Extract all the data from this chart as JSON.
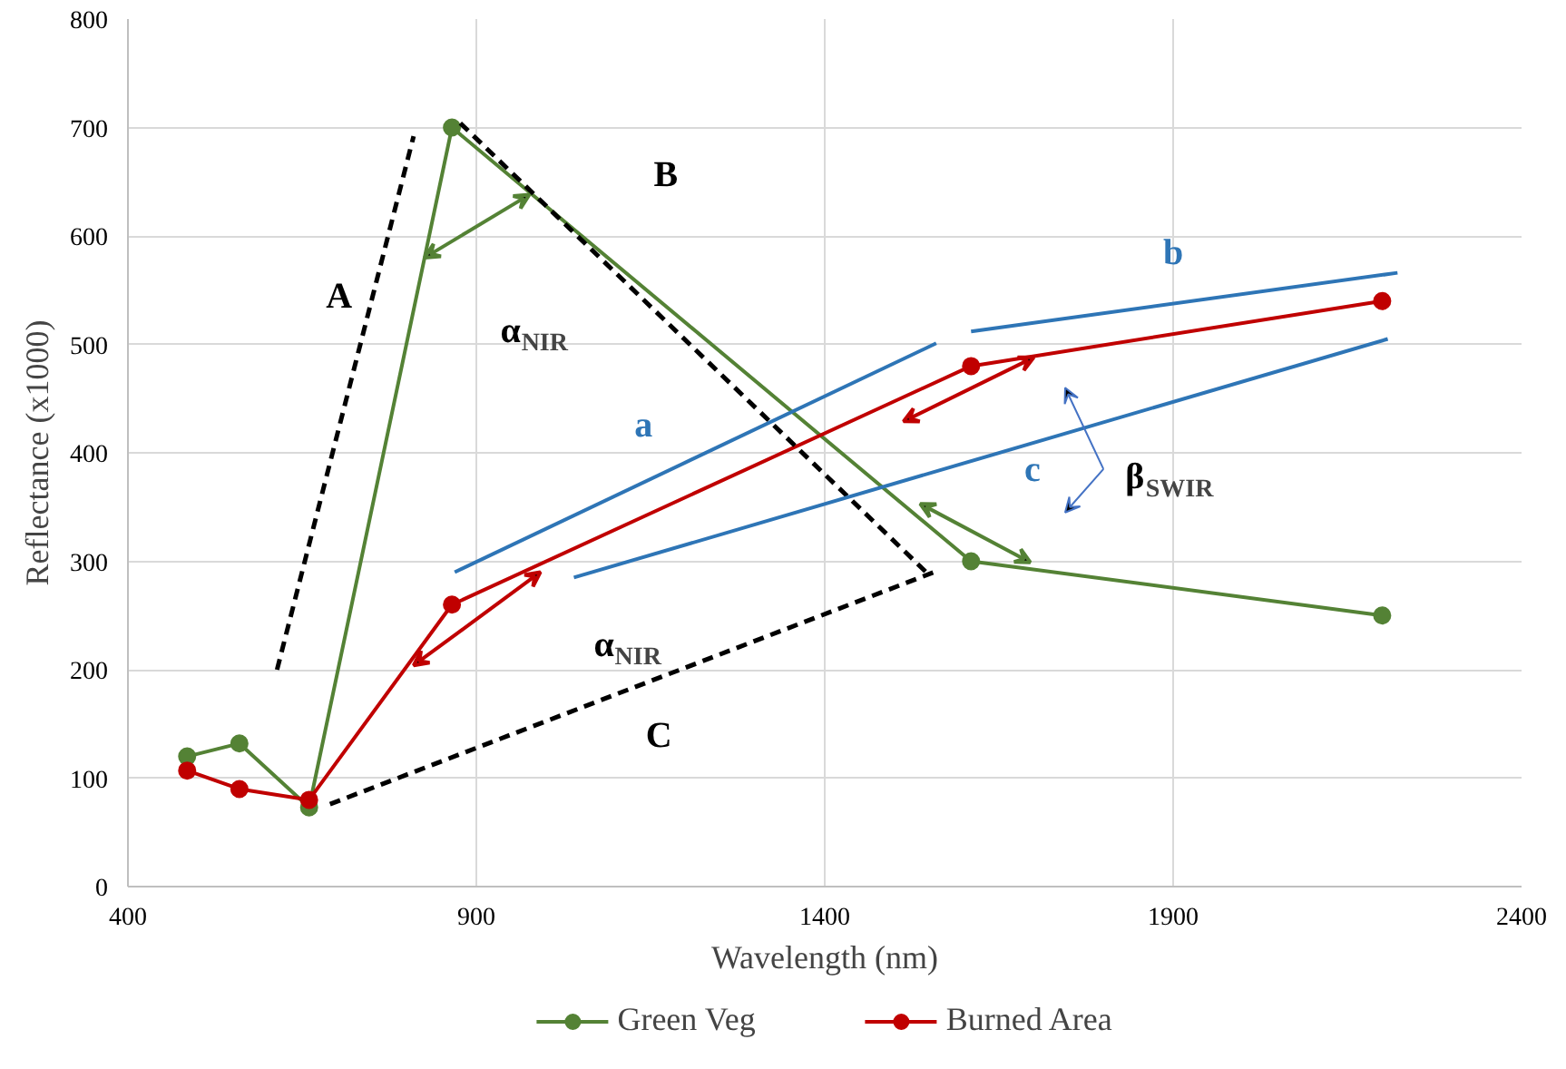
{
  "chart_data": {
    "type": "line",
    "xlabel": "Wavelength (nm)",
    "ylabel": "Reflectance (x1000)",
    "x": [
      485,
      560,
      660,
      865,
      1610,
      2200
    ],
    "xlim": [
      400,
      2400
    ],
    "xticks": [
      400,
      900,
      1400,
      1900,
      2400
    ],
    "ylim": [
      0,
      800
    ],
    "yticks": [
      0,
      100,
      200,
      300,
      400,
      500,
      600,
      700,
      800
    ],
    "grid": true,
    "legend": "bottom",
    "marker": "circle",
    "line_style": "solid",
    "series": [
      {
        "name": "Green Veg",
        "color": "#548235",
        "values": [
          120,
          132,
          73,
          700,
          300,
          250
        ]
      },
      {
        "name": "Burned Area",
        "color": "#c00000",
        "values": [
          107,
          90,
          80,
          260,
          480,
          540
        ]
      },
      {
        "type": "line",
        "x": [
          614,
          810
        ],
        "values": [
          200,
          692
        ],
        "color": "#000000",
        "line_style": "dashed",
        "marker": "none"
      },
      {
        "type": "line",
        "x": [
          877,
          1552
        ],
        "values": [
          704,
          286
        ],
        "color": "#000000",
        "line_style": "dashed",
        "marker": "none"
      },
      {
        "type": "line",
        "x": [
          690,
          1557
        ],
        "values": [
          76,
          290
        ],
        "color": "#000000",
        "line_style": "dashed",
        "marker": "none"
      },
      {
        "type": "line",
        "x": [
          869,
          1560
        ],
        "values": [
          290,
          501
        ],
        "color": "#2e75b6",
        "line_style": "solid",
        "marker": "none"
      },
      {
        "type": "line",
        "x": [
          1610,
          2222
        ],
        "values": [
          512,
          566
        ],
        "color": "#2e75b6",
        "line_style": "solid",
        "marker": "none"
      },
      {
        "type": "line",
        "x": [
          1040,
          2208
        ],
        "values": [
          285,
          505
        ],
        "color": "#2e75b6",
        "line_style": "solid",
        "marker": "none"
      }
    ],
    "annotations": [
      "A",
      "B",
      "C",
      "a",
      "b",
      "c",
      "α$_{NIR}$",
      "α$_{NIR}$",
      "β$_{SWIR}$"
    ]
  }
}
